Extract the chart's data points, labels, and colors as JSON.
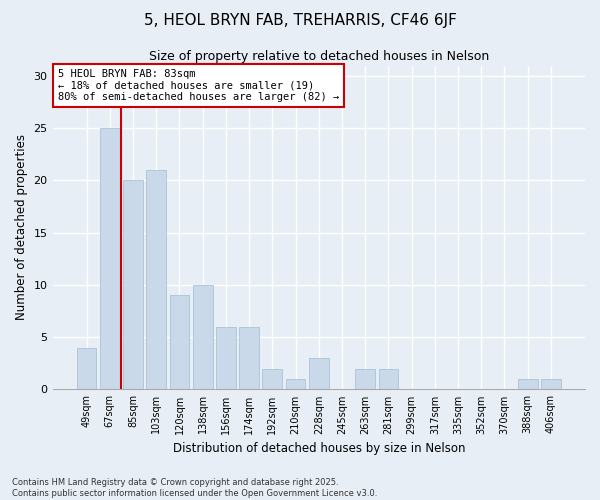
{
  "title": "5, HEOL BRYN FAB, TREHARRIS, CF46 6JF",
  "subtitle": "Size of property relative to detached houses in Nelson",
  "xlabel": "Distribution of detached houses by size in Nelson",
  "ylabel": "Number of detached properties",
  "bar_color": "#c9d9ea",
  "bar_edgecolor": "#a8c4d8",
  "background_color": "#e8eef5",
  "grid_color": "#ffffff",
  "categories": [
    "49sqm",
    "67sqm",
    "85sqm",
    "103sqm",
    "120sqm",
    "138sqm",
    "156sqm",
    "174sqm",
    "192sqm",
    "210sqm",
    "228sqm",
    "245sqm",
    "263sqm",
    "281sqm",
    "299sqm",
    "317sqm",
    "335sqm",
    "352sqm",
    "370sqm",
    "388sqm",
    "406sqm"
  ],
  "values": [
    4,
    25,
    20,
    21,
    9,
    10,
    6,
    6,
    2,
    1,
    3,
    0,
    2,
    2,
    0,
    0,
    0,
    0,
    0,
    1,
    1
  ],
  "property_line_x": 1.5,
  "annotation_text": "5 HEOL BRYN FAB: 83sqm\n← 18% of detached houses are smaller (19)\n80% of semi-detached houses are larger (82) →",
  "annotation_box_color": "#ffffff",
  "annotation_box_edgecolor": "#cc0000",
  "vline_color": "#cc0000",
  "ylim": [
    0,
    31
  ],
  "yticks": [
    0,
    5,
    10,
    15,
    20,
    25,
    30
  ],
  "footer": "Contains HM Land Registry data © Crown copyright and database right 2025.\nContains public sector information licensed under the Open Government Licence v3.0."
}
